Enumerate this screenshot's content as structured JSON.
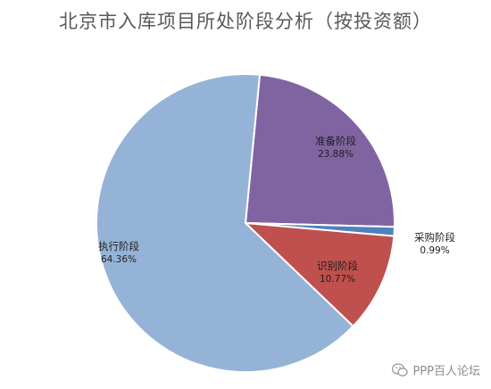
{
  "chart_data": {
    "type": "pie",
    "title": "北京市入库项目所处阶段分析（按投资额）",
    "start_angle_deg": 5.5,
    "direction": "clockwise",
    "slices": [
      {
        "label": "准备阶段",
        "value": 23.88,
        "value_label": "23.88%",
        "color": "#8064a2"
      },
      {
        "label": "采购阶段",
        "value": 0.99,
        "value_label": "0.99%",
        "color": "#4f81bd"
      },
      {
        "label": "识别阶段",
        "value": 10.77,
        "value_label": "10.77%",
        "color": "#c0504d"
      },
      {
        "label": "执行阶段",
        "value": 64.36,
        "value_label": "64.36%",
        "color": "#95b3d7"
      }
    ]
  },
  "watermark": {
    "icon": "wechat-icon",
    "text": "PPP百人论坛"
  }
}
